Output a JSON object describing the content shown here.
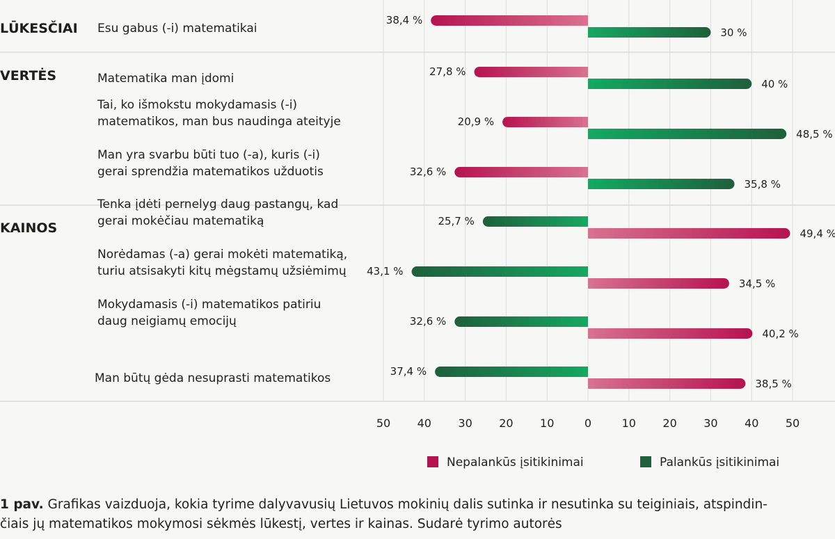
{
  "chart_data": {
    "type": "bar",
    "orientation": "horizontal-diverging",
    "xlim": [
      -50,
      50
    ],
    "xticks": [
      "50",
      "40",
      "30",
      "20",
      "10",
      "0",
      "10",
      "20",
      "30",
      "40",
      "50"
    ],
    "legend": {
      "placement": "bottom-right",
      "items": [
        {
          "label": "Nepalankūs įsitikinimai",
          "color": "#b5134f"
        },
        {
          "label": "Palankūs įsitikinimai",
          "color": "#1f5f3c"
        }
      ]
    },
    "colors": {
      "unfavorable": "#b5134f",
      "unfavorable_light": "#d9718f",
      "favorable": "#1f5f3c",
      "favorable_light": "#15a862"
    },
    "groups": [
      {
        "name": "LŪKESČIAI",
        "items": [
          {
            "lines": [
              "Esu gabus (-i) matematikai"
            ],
            "left": 38.4,
            "left_label": "38,4 %",
            "right": 30,
            "right_label": "30 %",
            "left_type": "unfavorable",
            "right_type": "favorable"
          }
        ]
      },
      {
        "name": "VERTĖS",
        "items": [
          {
            "lines": [
              "Matematika man įdomi"
            ],
            "left": 27.8,
            "left_label": "27,8 %",
            "right": 40,
            "right_label": "40 %",
            "left_type": "unfavorable",
            "right_type": "favorable"
          },
          {
            "lines": [
              "Tai, ko išmokstu mokydamasis (-i)",
              "matematikos, man bus naudinga ateityje"
            ],
            "left": 20.9,
            "left_label": "20,9 %",
            "right": 48.5,
            "right_label": "48,5 %",
            "left_type": "unfavorable",
            "right_type": "favorable"
          },
          {
            "lines": [
              "Man yra svarbu būti tuo (-a), kuris (-i)",
              "gerai sprendžia matematikos užduotis"
            ],
            "left": 32.6,
            "left_label": "32,6 %",
            "right": 35.8,
            "right_label": "35,8 %",
            "left_type": "unfavorable",
            "right_type": "favorable"
          }
        ]
      },
      {
        "name": "KAINOS",
        "items": [
          {
            "lines": [
              "Tenka įdėti pernelyg daug pastangų, kad",
              "gerai mokėčiau matematiką"
            ],
            "left": 25.7,
            "left_label": "25,7 %",
            "right": 49.4,
            "right_label": "49,4 %",
            "left_type": "favorable",
            "right_type": "unfavorable"
          },
          {
            "lines": [
              "Norėdamas (-a) gerai mokėti matematiką,",
              "turiu atsisakyti kitų mėgstamų užsiėmimų"
            ],
            "left": 43.1,
            "left_label": "43,1 %",
            "right": 34.5,
            "right_label": "34,5 %",
            "left_type": "favorable",
            "right_type": "unfavorable"
          },
          {
            "lines": [
              "Mokydamasis (-i) matematikos patiriu",
              "daug neigiamų emocijų"
            ],
            "left": 32.6,
            "left_label": "32,6 %",
            "right": 40.2,
            "right_label": "40,2 %",
            "left_type": "favorable",
            "right_type": "unfavorable"
          },
          {
            "lines": [
              "Man būtų gėda nesuprasti matematikos"
            ],
            "left": 37.4,
            "left_label": "37,4 %",
            "right": 38.5,
            "right_label": "38,5 %",
            "left_type": "favorable",
            "right_type": "unfavorable"
          }
        ]
      }
    ]
  },
  "caption": {
    "prefix": "1 pav.",
    "line1": "Grafikas vaizduoja, kokia tyrime dalyvavusių Lietuvos mokinių dalis sutinka ir nesutinka su teiginiais, atspindin-",
    "line2": "čiais jų matematikos mokymosi sėkmės lūkestį, vertes ir kainas. Sudarė tyrimo autorės"
  }
}
